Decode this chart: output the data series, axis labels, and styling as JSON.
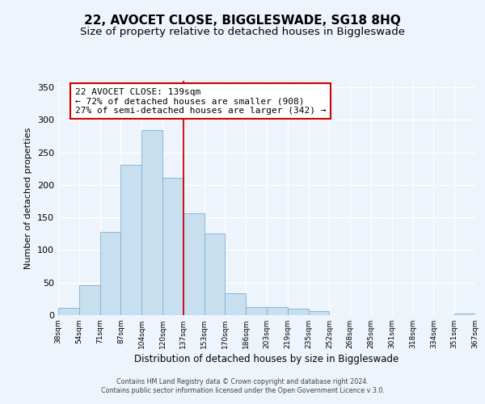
{
  "title": "22, AVOCET CLOSE, BIGGLESWADE, SG18 8HQ",
  "subtitle": "Size of property relative to detached houses in Biggleswade",
  "xlabel": "Distribution of detached houses by size in Biggleswade",
  "ylabel": "Number of detached properties",
  "bar_values": [
    11,
    46,
    128,
    231,
    284,
    211,
    157,
    126,
    33,
    12,
    12,
    10,
    6,
    0,
    0,
    0,
    0,
    0,
    0,
    2
  ],
  "bar_labels": [
    "38sqm",
    "54sqm",
    "71sqm",
    "87sqm",
    "104sqm",
    "120sqm",
    "137sqm",
    "153sqm",
    "170sqm",
    "186sqm",
    "203sqm",
    "219sqm",
    "235sqm",
    "252sqm",
    "268sqm",
    "285sqm",
    "301sqm",
    "318sqm",
    "334sqm",
    "351sqm",
    "367sqm"
  ],
  "bar_color": "#c8dff0",
  "bar_edge_color": "#7ab0d4",
  "vline_color": "#cc0000",
  "annotation_title": "22 AVOCET CLOSE: 139sqm",
  "annotation_line1": "← 72% of detached houses are smaller (908)",
  "annotation_line2": "27% of semi-detached houses are larger (342) →",
  "annotation_box_color": "#ffffff",
  "annotation_box_edge": "#cc0000",
  "ylim": [
    0,
    360
  ],
  "yticks": [
    0,
    50,
    100,
    150,
    200,
    250,
    300,
    350
  ],
  "footer1": "Contains HM Land Registry data © Crown copyright and database right 2024.",
  "footer2": "Contains public sector information licensed under the Open Government Licence v 3.0.",
  "bg_color": "#eef4fb",
  "grid_color": "#ffffff",
  "title_fontsize": 11,
  "subtitle_fontsize": 9.5,
  "figsize": [
    6.0,
    5.0
  ],
  "dpi": 100
}
